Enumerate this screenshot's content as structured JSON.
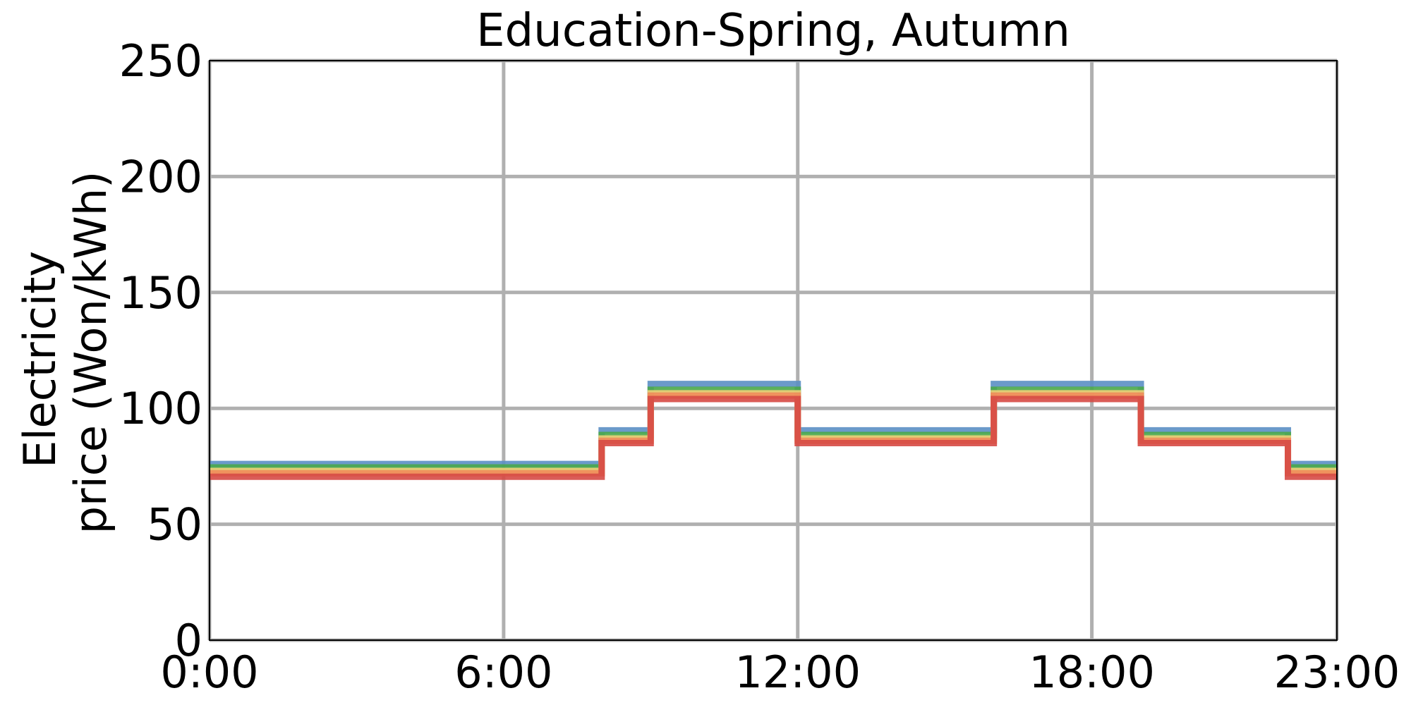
{
  "chart_data": {
    "type": "line",
    "step": "post",
    "title": "Education-Spring, Autumn",
    "ylabel_lines": [
      "Electricity",
      "price (Won/kWh)"
    ],
    "xlabel": "",
    "xlim": [
      0,
      23
    ],
    "ylim": [
      0,
      250
    ],
    "xticks": [
      0,
      6,
      12,
      18,
      23
    ],
    "xtick_labels": [
      "0:00",
      "6:00",
      "12:00",
      "18:00",
      "23:00"
    ],
    "yticks": [
      0,
      50,
      100,
      150,
      200,
      250
    ],
    "ytick_labels": [
      "0",
      "50",
      "100",
      "150",
      "200",
      "250"
    ],
    "grid": true,
    "legend": false,
    "x": [
      0,
      8,
      9,
      12,
      16,
      19,
      22,
      23
    ],
    "series": [
      {
        "color": "#5b8fc4",
        "values": [
          76,
          90.5,
          110.5,
          90.5,
          110.5,
          90.5,
          76,
          76
        ]
      },
      {
        "color": "#4aa84a",
        "values": [
          74.5,
          88.5,
          108,
          88.5,
          108,
          88.5,
          74.5,
          74.5
        ]
      },
      {
        "color": "#f0d078",
        "values": [
          73,
          87,
          106.5,
          87,
          106.5,
          87,
          73,
          73
        ]
      },
      {
        "color": "#ef8c5a",
        "values": [
          72,
          86,
          105.5,
          86,
          105.5,
          86,
          72,
          72
        ]
      },
      {
        "color": "#d64a45",
        "values": [
          70.5,
          85,
          104,
          85,
          104,
          85,
          70.5,
          70.5
        ]
      }
    ]
  }
}
